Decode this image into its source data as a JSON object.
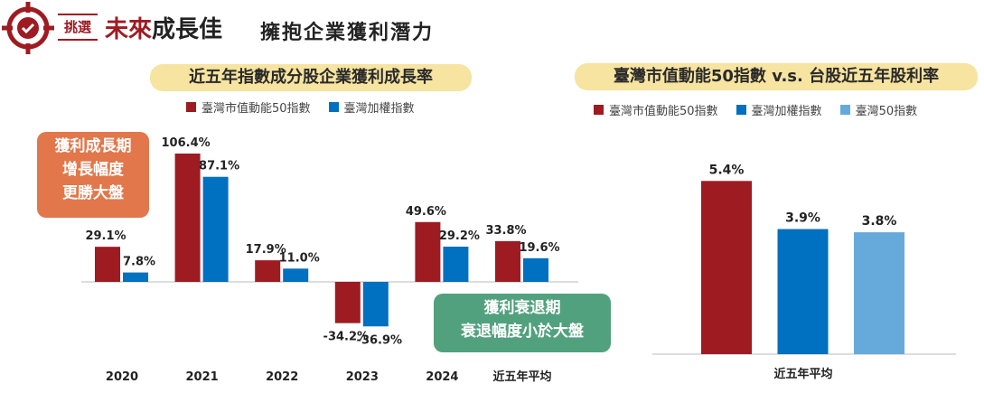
{
  "header": {
    "tag": "挑選",
    "title_red": "未來",
    "title_dark": "成長佳",
    "subtitle": "擁抱企業獲利潛力"
  },
  "colors": {
    "red": "#9e1b22",
    "blue": "#0070c0",
    "lightblue": "#66aadb",
    "pill": "#f6e4a0",
    "orange": "#e2774b",
    "green": "#52a17e"
  },
  "callouts": {
    "growth": [
      "獲利成長期",
      "增長幅度",
      "更勝大盤"
    ],
    "recession": [
      "獲利衰退期",
      "衰退幅度小於大盤"
    ]
  },
  "chart_data": [
    {
      "type": "bar",
      "title": "近五年指數成分股企業獲利成長率",
      "categories": [
        "2020",
        "2021",
        "2022",
        "2023",
        "2024",
        "近五年平均"
      ],
      "series": [
        {
          "name": "臺灣市值動能50指數",
          "values": [
            29.1,
            106.4,
            17.9,
            -34.2,
            49.6,
            33.8
          ],
          "labels": [
            "29.1%",
            "106.4%",
            "17.9%",
            "-34.2%",
            "49.6%",
            "33.8%"
          ]
        },
        {
          "name": "臺灣加權指數",
          "values": [
            7.8,
            87.1,
            11.0,
            -36.9,
            29.2,
            19.6
          ],
          "labels": [
            "7.8%",
            "87.1%",
            "11.0%",
            "-36.9%",
            "29.2%",
            "19.6%"
          ]
        }
      ],
      "unit": "%"
    },
    {
      "type": "bar",
      "title": "臺灣市值動能50指數 v.s. 台股近五年股利率",
      "categories": [
        "近五年平均"
      ],
      "series": [
        {
          "name": "臺灣市值動能50指數",
          "values": [
            5.4
          ],
          "labels": [
            "5.4%"
          ]
        },
        {
          "name": "臺灣加權指數",
          "values": [
            3.9
          ],
          "labels": [
            "3.9%"
          ]
        },
        {
          "name": "臺灣50指數",
          "values": [
            3.8
          ],
          "labels": [
            "3.8%"
          ]
        }
      ],
      "unit": "%"
    }
  ]
}
